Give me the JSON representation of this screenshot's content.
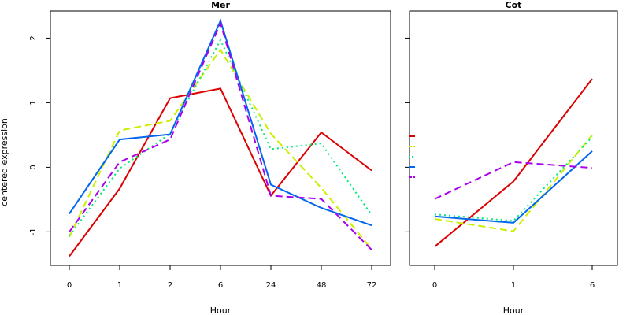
{
  "ylabel": "centered expression",
  "chart_data": [
    {
      "type": "line",
      "title": "Mer",
      "xlabel": "Hour",
      "ylabel": "centered expression",
      "categories": [
        "0",
        "1",
        "2",
        "6",
        "24",
        "48",
        "72"
      ],
      "yticks": [
        -1,
        0,
        1,
        2
      ],
      "ylim": [
        -1.52,
        2.42
      ],
      "grid": false,
      "series": [
        {
          "color": "#dd0000",
          "dash": "solid",
          "values": [
            -1.38,
            -0.33,
            1.07,
            1.22,
            -0.44,
            0.54,
            -0.05
          ]
        },
        {
          "color": "#ccee00",
          "dash": "dashed",
          "values": [
            -1.08,
            0.57,
            0.72,
            1.82,
            0.52,
            -0.32,
            -1.27
          ]
        },
        {
          "color": "#00ee77",
          "dash": "dotted",
          "values": [
            -1.06,
            -0.02,
            0.52,
            1.97,
            0.28,
            0.37,
            -0.74
          ]
        },
        {
          "color": "#0066ee",
          "dash": "solid",
          "values": [
            -0.72,
            0.43,
            0.51,
            2.27,
            -0.27,
            -0.63,
            -0.9
          ]
        },
        {
          "color": "#aa00ee",
          "dash": "dashed",
          "values": [
            -1.0,
            0.08,
            0.43,
            2.23,
            -0.44,
            -0.49,
            -1.28
          ]
        }
      ]
    },
    {
      "type": "line",
      "title": "Cot",
      "xlabel": "Hour",
      "categories": [
        "0",
        "1",
        "6"
      ],
      "yticks": [
        -1,
        0,
        1,
        2
      ],
      "ylim": [
        -1.52,
        2.42
      ],
      "grid": false,
      "series": [
        {
          "color": "#dd0000",
          "dash": "solid",
          "values": [
            -1.23,
            -0.22,
            1.37
          ]
        },
        {
          "color": "#ccee00",
          "dash": "dashed",
          "values": [
            -0.8,
            -0.99,
            0.5
          ]
        },
        {
          "color": "#00ee77",
          "dash": "dotted",
          "values": [
            -0.73,
            -0.83,
            0.47
          ]
        },
        {
          "color": "#0066ee",
          "dash": "solid",
          "values": [
            -0.76,
            -0.86,
            0.25
          ]
        },
        {
          "color": "#aa00ee",
          "dash": "dashed",
          "values": [
            -0.49,
            0.08,
            -0.01
          ]
        }
      ]
    }
  ]
}
